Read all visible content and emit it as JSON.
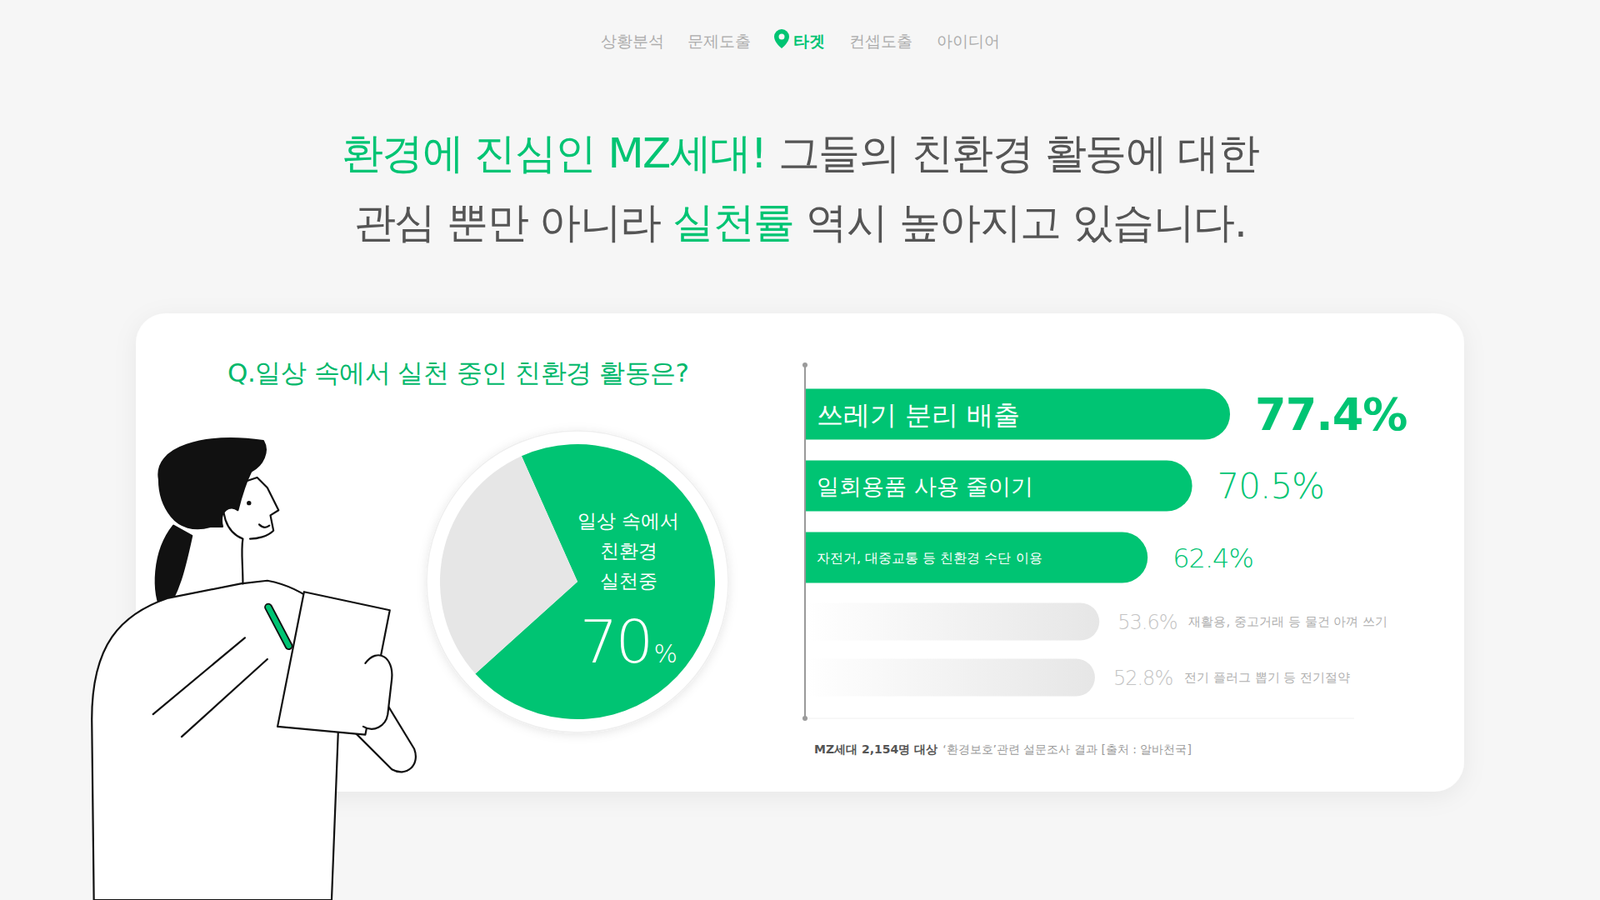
{
  "nav": {
    "items": [
      "상황분석",
      "문제도출",
      "타겟",
      "컨셉도출",
      "아이디어"
    ],
    "active": 2
  },
  "headline": {
    "lines": [
      [
        {
          "text": "환경에 진심인 MZ세대!",
          "highlight": true
        },
        {
          "text": " 그들의 친환경 활동에 대한",
          "highlight": false
        }
      ],
      [
        {
          "text": "관심 뿐만 아니라 ",
          "highlight": false
        },
        {
          "text": "실천률",
          "highlight": true
        },
        {
          "text": " 역시 높아지고 있습니다.",
          "highlight": false
        }
      ]
    ]
  },
  "card": {
    "question": "Q.일상 속에서 실천 중인 친환경 활동은?",
    "source": [
      "MZ세대 2,154명 대상",
      "‘환경보호’관련 설문조사 결과 [출처 : 알바천국]"
    ]
  },
  "chart_data": [
    {
      "type": "pie",
      "categories": [
        "일상 속에서\n친환경\n실천중",
        null
      ],
      "values": [
        70,
        30
      ],
      "value_labels": [
        "70%",
        null
      ],
      "colors": [
        "#00c473",
        "#e6e6e6"
      ],
      "data_labels": true
    },
    {
      "type": "bar",
      "orientation": "horizontal",
      "categories": [
        "쓰레기 분리 배출",
        "일회용품 사용 줄이기",
        "자전거, 대중교통 등 친환경 수단 이용",
        "재활용, 중고거래 등 물건 아껴 쓰기",
        "전기 플러그 뽑기 등 전기절약"
      ],
      "values": [
        77.4,
        70.5,
        62.4,
        53.6,
        52.8
      ],
      "value_labels": [
        "77.4%",
        "70.5%",
        "62.4%",
        "53.6%",
        "52.8%"
      ],
      "colors": [
        "#00c473",
        "#00c473",
        "#00c473",
        "#e6e6e6",
        "#e6e6e6"
      ],
      "xlim": [
        0,
        100
      ],
      "data_labels": true,
      "tick_labels": false
    }
  ]
}
